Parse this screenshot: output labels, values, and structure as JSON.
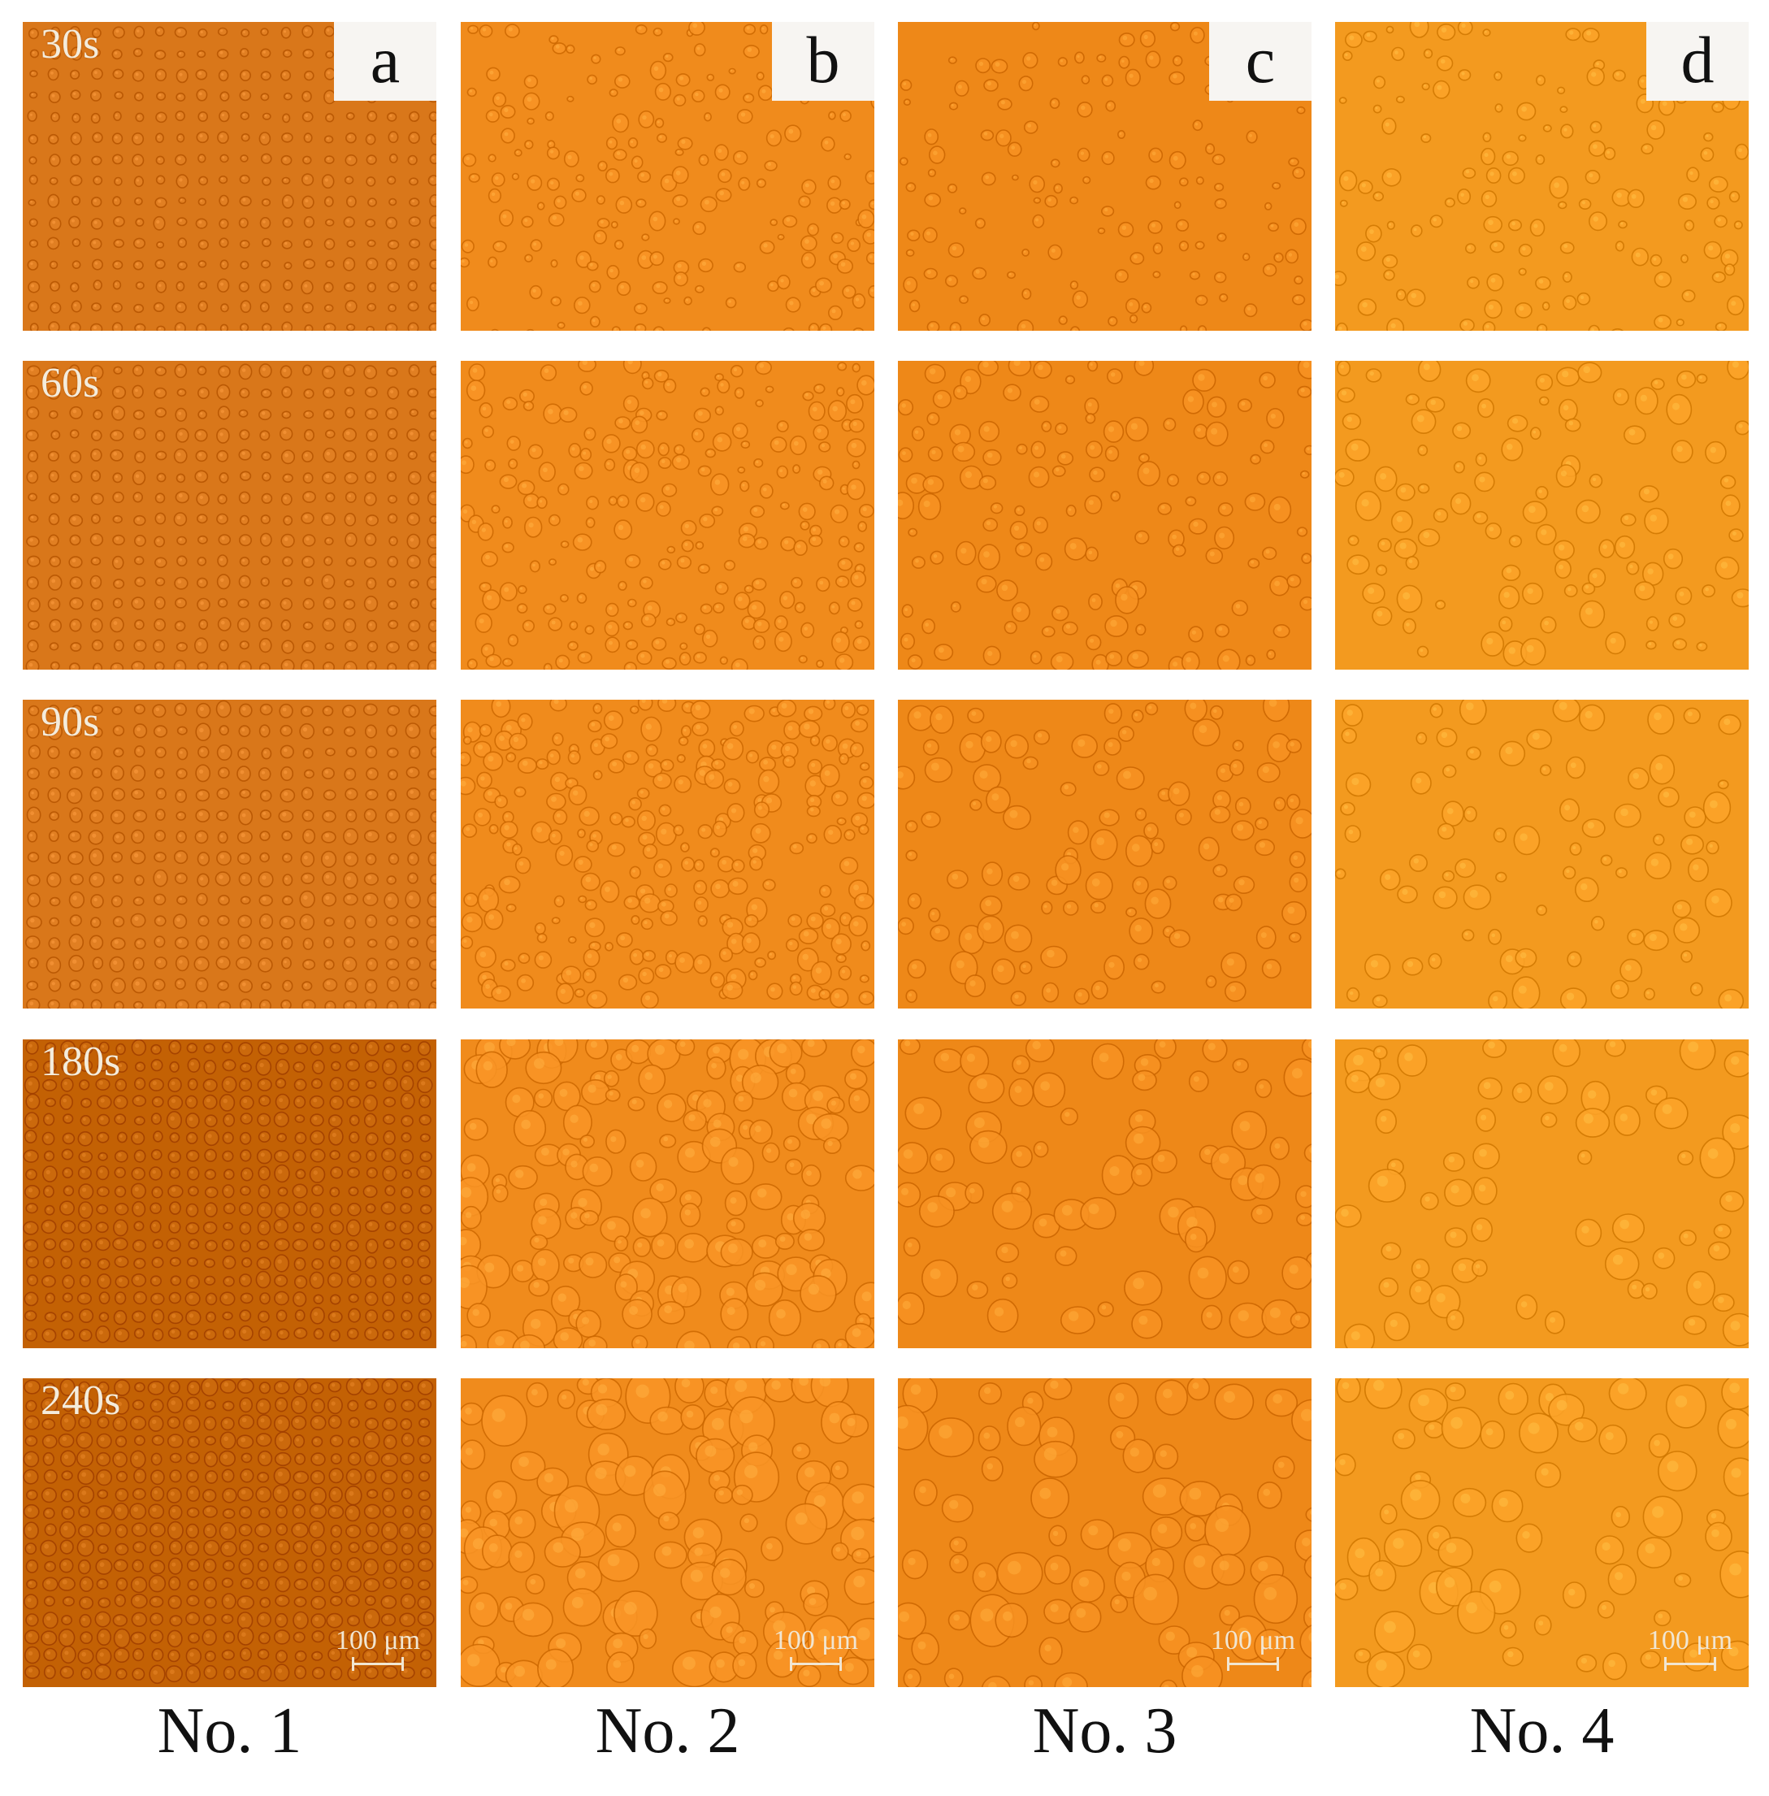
{
  "columns": [
    {
      "letter": "a",
      "label": "No. 1",
      "tint": "#d9771a"
    },
    {
      "letter": "b",
      "label": "No. 2",
      "tint": "#f08b1c"
    },
    {
      "letter": "c",
      "label": "No. 3",
      "tint": "#ee8818"
    },
    {
      "letter": "d",
      "label": "No. 4",
      "tint": "#f39a1f"
    }
  ],
  "rows": [
    {
      "time": "30s"
    },
    {
      "time": "60s"
    },
    {
      "time": "90s"
    },
    {
      "time": "180s"
    },
    {
      "time": "240s"
    }
  ],
  "scale_bar_text": "100 μm"
}
